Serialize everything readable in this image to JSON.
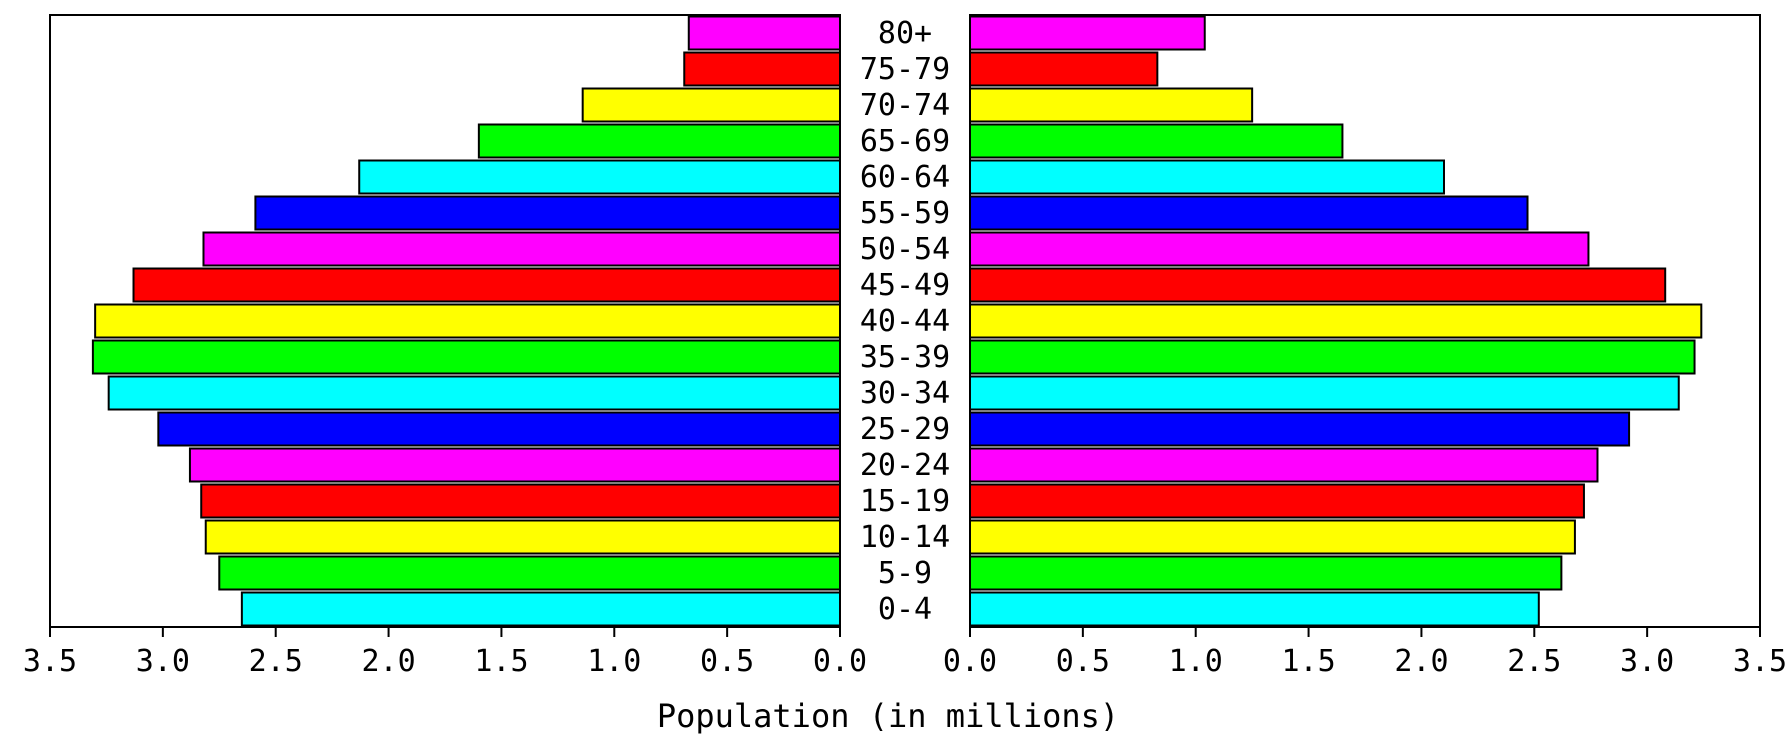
{
  "chart_data": {
    "type": "bar",
    "orientation": "horizontal",
    "layout": "population-pyramid",
    "title": "",
    "xlabel": "Population (in millions)",
    "ylabel": "",
    "xlim": [
      0,
      3.5
    ],
    "grid": false,
    "legend": "none",
    "categories": [
      "80+",
      "75-79",
      "70-74",
      "65-69",
      "60-64",
      "55-59",
      "50-54",
      "45-49",
      "40-44",
      "35-39",
      "30-34",
      "25-29",
      "20-24",
      "15-19",
      "10-14",
      "5-9",
      "0-4"
    ],
    "category_colors": [
      "#ff00ff",
      "#ff0000",
      "#ffff00",
      "#00ff00",
      "#00ffff",
      "#0000ff",
      "#ff00ff",
      "#ff0000",
      "#ffff00",
      "#00ff00",
      "#00ffff",
      "#0000ff",
      "#ff00ff",
      "#ff0000",
      "#ffff00",
      "#00ff00",
      "#00ffff"
    ],
    "x_ticks": [
      "0.0",
      "0.5",
      "1.0",
      "1.5",
      "2.0",
      "2.5",
      "3.0",
      "3.5"
    ],
    "series": [
      {
        "values": [
          0.67,
          0.69,
          1.14,
          1.6,
          2.13,
          2.59,
          2.82,
          3.13,
          3.3,
          3.31,
          3.24,
          3.02,
          2.88,
          2.83,
          2.81,
          2.75,
          2.65
        ]
      },
      {
        "values": [
          1.04,
          0.83,
          1.25,
          1.65,
          2.1,
          2.47,
          2.74,
          3.08,
          3.24,
          3.21,
          3.14,
          2.92,
          2.78,
          2.72,
          2.68,
          2.62,
          2.52
        ]
      }
    ]
  }
}
